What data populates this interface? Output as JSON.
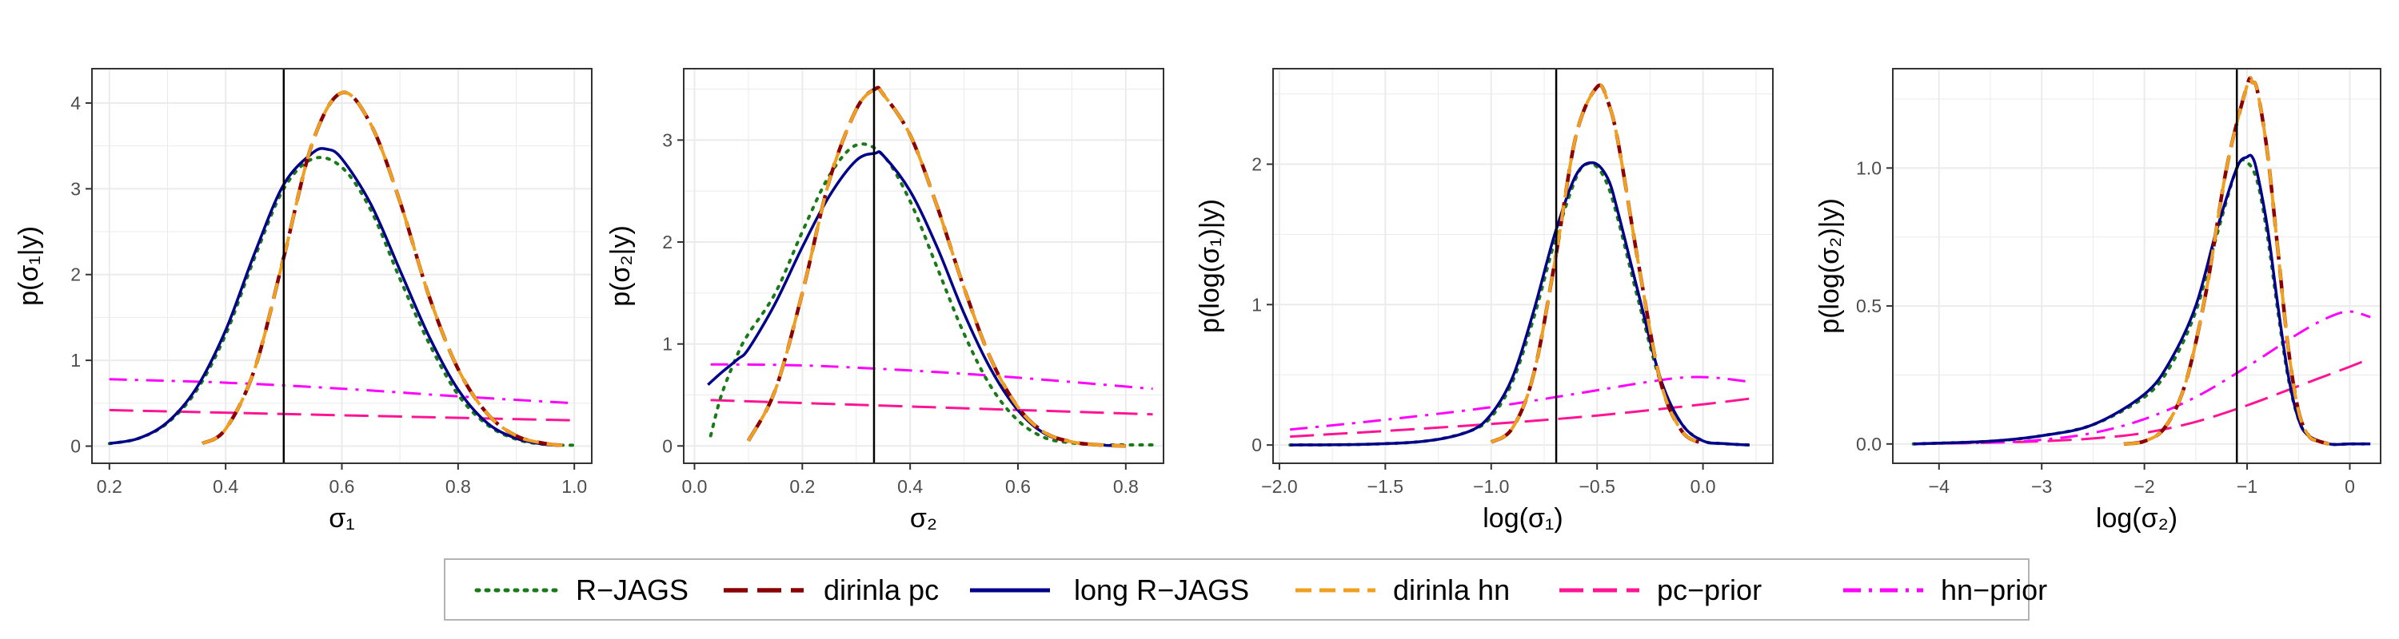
{
  "colors": {
    "R-JAGS": "#1a7a1a",
    "dirinla pc": "#8b0000",
    "long R-JAGS": "#00008b",
    "dirinla hn": "#f0a020",
    "pc-prior": "#ff1493",
    "hn-prior": "#ff00ff",
    "vline": "#000000",
    "grid": "#ebebeb",
    "panel_border": "#333333"
  },
  "legend": {
    "entries": [
      {
        "label": "R−JAGS",
        "series": "R-JAGS"
      },
      {
        "label": "dirinla pc",
        "series": "dirinla pc"
      },
      {
        "label": "long R−JAGS",
        "series": "long R-JAGS"
      },
      {
        "label": "dirinla hn",
        "series": "dirinla hn"
      },
      {
        "label": "pc−prior",
        "series": "pc-prior"
      },
      {
        "label": "hn−prior",
        "series": "hn-prior"
      }
    ],
    "placement": "bottom"
  },
  "chart_data": [
    {
      "type": "line",
      "xlabel": "σ₁",
      "ylabel": "p(σ₁|y)",
      "xlim": [
        0.17,
        1.03
      ],
      "ylim": [
        -0.2,
        4.4
      ],
      "xticks": [
        0.2,
        0.4,
        0.6,
        0.8,
        1.0
      ],
      "xtick_labels": [
        "0.2",
        "0.4",
        "0.6",
        "0.8",
        "1.0"
      ],
      "yticks": [
        0,
        1,
        2,
        3,
        4
      ],
      "ytick_labels": [
        "0",
        "1",
        "2",
        "3",
        "4"
      ],
      "vline": 0.5,
      "grid": true,
      "series": [
        {
          "name": "R-JAGS",
          "dash": "dot",
          "x": [
            0.2,
            0.25,
            0.3,
            0.35,
            0.4,
            0.45,
            0.5,
            0.55,
            0.6,
            0.65,
            0.7,
            0.75,
            0.8,
            0.85,
            0.9,
            0.95,
            1.0
          ],
          "y": [
            0.03,
            0.09,
            0.27,
            0.65,
            1.3,
            2.2,
            3.0,
            3.35,
            3.25,
            2.75,
            1.95,
            1.2,
            0.6,
            0.25,
            0.08,
            0.02,
            0.01
          ]
        },
        {
          "name": "dirinla pc",
          "dash": "longdash",
          "x": [
            0.36,
            0.4,
            0.45,
            0.5,
            0.55,
            0.6,
            0.65,
            0.7,
            0.75,
            0.8,
            0.85,
            0.9,
            0.95,
            0.98
          ],
          "y": [
            0.03,
            0.2,
            0.9,
            2.2,
            3.55,
            4.12,
            3.75,
            2.85,
            1.75,
            0.9,
            0.38,
            0.12,
            0.03,
            0.01
          ]
        },
        {
          "name": "long R-JAGS",
          "dash": "solid",
          "x": [
            0.2,
            0.25,
            0.3,
            0.35,
            0.4,
            0.45,
            0.5,
            0.55,
            0.575,
            0.6,
            0.65,
            0.7,
            0.75,
            0.8,
            0.85,
            0.9,
            0.95,
            0.98
          ],
          "y": [
            0.03,
            0.09,
            0.28,
            0.68,
            1.35,
            2.25,
            3.05,
            3.42,
            3.46,
            3.35,
            2.82,
            2.05,
            1.28,
            0.66,
            0.27,
            0.09,
            0.02,
            0.01
          ]
        },
        {
          "name": "dirinla hn",
          "dash": "dash",
          "x": [
            0.36,
            0.4,
            0.45,
            0.5,
            0.55,
            0.6,
            0.65,
            0.7,
            0.75,
            0.8,
            0.85,
            0.9,
            0.95,
            0.98
          ],
          "y": [
            0.03,
            0.2,
            0.9,
            2.2,
            3.55,
            4.12,
            3.75,
            2.85,
            1.75,
            0.9,
            0.38,
            0.12,
            0.03,
            0.01
          ]
        },
        {
          "name": "pc-prior",
          "dash": "longdash",
          "x": [
            0.2,
            1.0
          ],
          "y": [
            0.42,
            0.3
          ]
        },
        {
          "name": "hn-prior",
          "dash": "dashdot",
          "x": [
            0.2,
            0.4,
            0.6,
            0.8,
            1.0
          ],
          "y": [
            0.78,
            0.74,
            0.67,
            0.58,
            0.5
          ]
        }
      ]
    },
    {
      "type": "line",
      "xlabel": "σ₂",
      "ylabel": "p(σ₂|y)",
      "xlim": [
        -0.02,
        0.87
      ],
      "ylim": [
        -0.17,
        3.7
      ],
      "xticks": [
        0.0,
        0.2,
        0.4,
        0.6,
        0.8
      ],
      "xtick_labels": [
        "0.0",
        "0.2",
        "0.4",
        "0.6",
        "0.8"
      ],
      "yticks": [
        0,
        1,
        2,
        3
      ],
      "ytick_labels": [
        "0",
        "1",
        "2",
        "3"
      ],
      "vline": 0.333,
      "grid": true,
      "series": [
        {
          "name": "R-JAGS",
          "dash": "dot",
          "x": [
            0.03,
            0.05,
            0.08,
            0.1,
            0.15,
            0.2,
            0.25,
            0.3,
            0.35,
            0.4,
            0.45,
            0.5,
            0.55,
            0.6,
            0.65,
            0.7,
            0.75,
            0.8,
            0.85
          ],
          "y": [
            0.1,
            0.5,
            0.9,
            1.1,
            1.5,
            2.1,
            2.65,
            2.95,
            2.85,
            2.4,
            1.75,
            1.1,
            0.58,
            0.25,
            0.08,
            0.03,
            0.01,
            0.01,
            0.01
          ]
        },
        {
          "name": "dirinla pc",
          "dash": "longdash",
          "x": [
            0.1,
            0.15,
            0.2,
            0.25,
            0.3,
            0.335,
            0.35,
            0.4,
            0.45,
            0.5,
            0.55,
            0.6,
            0.65,
            0.7,
            0.75,
            0.8
          ],
          "y": [
            0.05,
            0.55,
            1.5,
            2.6,
            3.3,
            3.5,
            3.45,
            3.05,
            2.35,
            1.55,
            0.85,
            0.38,
            0.13,
            0.04,
            0.01,
            0.0
          ]
        },
        {
          "name": "long R-JAGS",
          "dash": "solid",
          "x": [
            0.025,
            0.05,
            0.08,
            0.1,
            0.15,
            0.2,
            0.25,
            0.3,
            0.335,
            0.35,
            0.4,
            0.45,
            0.5,
            0.55,
            0.6,
            0.65,
            0.7,
            0.75,
            0.8
          ],
          "y": [
            0.6,
            0.72,
            0.85,
            0.95,
            1.4,
            1.95,
            2.45,
            2.8,
            2.87,
            2.85,
            2.5,
            1.95,
            1.3,
            0.75,
            0.35,
            0.12,
            0.04,
            0.01,
            0.0
          ]
        },
        {
          "name": "dirinla hn",
          "dash": "dash",
          "x": [
            0.1,
            0.15,
            0.2,
            0.25,
            0.3,
            0.335,
            0.35,
            0.4,
            0.45,
            0.5,
            0.55,
            0.6,
            0.65,
            0.7,
            0.75,
            0.8
          ],
          "y": [
            0.05,
            0.55,
            1.5,
            2.6,
            3.3,
            3.5,
            3.45,
            3.05,
            2.35,
            1.55,
            0.85,
            0.38,
            0.13,
            0.04,
            0.01,
            0.0
          ]
        },
        {
          "name": "pc-prior",
          "dash": "longdash",
          "x": [
            0.03,
            0.85
          ],
          "y": [
            0.45,
            0.31
          ]
        },
        {
          "name": "hn-prior",
          "dash": "dashdot",
          "x": [
            0.03,
            0.2,
            0.4,
            0.6,
            0.85
          ],
          "y": [
            0.8,
            0.79,
            0.74,
            0.67,
            0.56
          ]
        }
      ]
    },
    {
      "type": "line",
      "xlabel": "log(σ₁)",
      "ylabel": "p(log(σ₁)|y)",
      "xlim": [
        -2.03,
        0.33
      ],
      "ylim": [
        -0.13,
        2.68
      ],
      "xticks": [
        -2.0,
        -1.5,
        -1.0,
        -0.5,
        0.0
      ],
      "xtick_labels": [
        "−2.0",
        "−1.5",
        "−1.0",
        "−0.5",
        "0.0"
      ],
      "yticks": [
        0,
        1,
        2
      ],
      "ytick_labels": [
        "0",
        "1",
        "2"
      ],
      "vline": -0.693,
      "grid": true,
      "series": [
        {
          "name": "R-JAGS",
          "dash": "dot",
          "x": [
            -1.95,
            -1.6,
            -1.3,
            -1.1,
            -1.0,
            -0.9,
            -0.8,
            -0.7,
            -0.6,
            -0.55,
            -0.5,
            -0.45,
            -0.4,
            -0.3,
            -0.2,
            -0.1,
            0.0,
            0.1,
            0.22
          ],
          "y": [
            0.0,
            0.005,
            0.03,
            0.1,
            0.2,
            0.45,
            0.9,
            1.45,
            1.9,
            2.0,
            1.98,
            1.85,
            1.6,
            1.0,
            0.45,
            0.15,
            0.03,
            0.01,
            0.0
          ]
        },
        {
          "name": "dirinla pc",
          "dash": "longdash",
          "x": [
            -1.0,
            -0.9,
            -0.8,
            -0.7,
            -0.6,
            -0.5,
            -0.45,
            -0.4,
            -0.3,
            -0.2,
            -0.1,
            0.0
          ],
          "y": [
            0.02,
            0.12,
            0.5,
            1.3,
            2.2,
            2.55,
            2.45,
            2.15,
            1.25,
            0.45,
            0.1,
            0.01
          ]
        },
        {
          "name": "long R-JAGS",
          "dash": "solid",
          "x": [
            -1.95,
            -1.6,
            -1.3,
            -1.1,
            -1.0,
            -0.9,
            -0.8,
            -0.7,
            -0.6,
            -0.52,
            -0.45,
            -0.4,
            -0.3,
            -0.2,
            -0.1,
            0.0,
            0.1,
            0.22
          ],
          "y": [
            0.0,
            0.005,
            0.03,
            0.1,
            0.22,
            0.48,
            0.95,
            1.5,
            1.92,
            2.01,
            1.9,
            1.65,
            1.05,
            0.47,
            0.15,
            0.03,
            0.01,
            0.0
          ]
        },
        {
          "name": "dirinla hn",
          "dash": "dash",
          "x": [
            -1.0,
            -0.9,
            -0.8,
            -0.7,
            -0.6,
            -0.5,
            -0.45,
            -0.4,
            -0.3,
            -0.2,
            -0.1,
            0.0
          ],
          "y": [
            0.02,
            0.12,
            0.5,
            1.3,
            2.2,
            2.55,
            2.45,
            2.15,
            1.25,
            0.45,
            0.1,
            0.01
          ]
        },
        {
          "name": "pc-prior",
          "dash": "longdash",
          "x": [
            -1.95,
            -1.5,
            -1.0,
            -0.5,
            0.0,
            0.22
          ],
          "y": [
            0.06,
            0.1,
            0.15,
            0.21,
            0.29,
            0.33
          ]
        },
        {
          "name": "hn-prior",
          "dash": "dashdot",
          "x": [
            -1.95,
            -1.5,
            -1.0,
            -0.5,
            -0.3,
            -0.1,
            0.05,
            0.22
          ],
          "y": [
            0.11,
            0.18,
            0.27,
            0.39,
            0.44,
            0.48,
            0.48,
            0.45
          ]
        }
      ]
    },
    {
      "type": "line",
      "xlabel": "log(σ₂)",
      "ylabel": "p(log(σ₂)|y)",
      "xlim": [
        -4.45,
        0.3
      ],
      "ylim": [
        -0.07,
        1.36
      ],
      "xticks": [
        -4,
        -3,
        -2,
        -1,
        0
      ],
      "xtick_labels": [
        "−4",
        "−3",
        "−2",
        "−1",
        "0"
      ],
      "yticks": [
        0.0,
        0.5,
        1.0
      ],
      "ytick_labels": [
        "0.0",
        "0.5",
        "1.0"
      ],
      "vline": -1.1,
      "grid": true,
      "series": [
        {
          "name": "R-JAGS",
          "dash": "dot",
          "x": [
            -4.25,
            -3.5,
            -3.0,
            -2.5,
            -2.0,
            -1.75,
            -1.5,
            -1.3,
            -1.1,
            -1.0,
            -0.9,
            -0.8,
            -0.7,
            -0.6,
            -0.5,
            -0.4,
            -0.2,
            0.0,
            0.2
          ],
          "y": [
            0.0,
            0.01,
            0.03,
            0.07,
            0.17,
            0.28,
            0.48,
            0.75,
            1.0,
            1.02,
            0.95,
            0.75,
            0.48,
            0.24,
            0.09,
            0.03,
            0.0,
            0.0,
            0.0
          ]
        },
        {
          "name": "dirinla pc",
          "dash": "longdash",
          "x": [
            -2.2,
            -2.0,
            -1.8,
            -1.6,
            -1.4,
            -1.2,
            -1.0,
            -0.95,
            -0.9,
            -0.8,
            -0.7,
            -0.6,
            -0.5,
            -0.4,
            -0.3,
            -0.2
          ],
          "y": [
            0.0,
            0.01,
            0.06,
            0.22,
            0.55,
            1.0,
            1.3,
            1.31,
            1.28,
            1.05,
            0.7,
            0.35,
            0.12,
            0.03,
            0.01,
            0.0
          ]
        },
        {
          "name": "long R-JAGS",
          "dash": "solid",
          "x": [
            -4.25,
            -3.5,
            -3.0,
            -2.5,
            -2.0,
            -1.75,
            -1.5,
            -1.3,
            -1.1,
            -1.0,
            -0.95,
            -0.9,
            -0.8,
            -0.7,
            -0.6,
            -0.5,
            -0.4,
            -0.2,
            0.0,
            0.2
          ],
          "y": [
            0.0,
            0.01,
            0.03,
            0.07,
            0.18,
            0.3,
            0.5,
            0.77,
            1.0,
            1.04,
            1.04,
            0.98,
            0.78,
            0.5,
            0.25,
            0.09,
            0.03,
            0.0,
            0.0,
            0.0
          ]
        },
        {
          "name": "dirinla hn",
          "dash": "dash",
          "x": [
            -2.2,
            -2.0,
            -1.8,
            -1.6,
            -1.4,
            -1.2,
            -1.0,
            -0.95,
            -0.9,
            -0.8,
            -0.7,
            -0.6,
            -0.5,
            -0.4,
            -0.3,
            -0.2
          ],
          "y": [
            0.0,
            0.01,
            0.06,
            0.22,
            0.55,
            1.0,
            1.3,
            1.31,
            1.28,
            1.05,
            0.7,
            0.35,
            0.12,
            0.03,
            0.01,
            0.0
          ]
        },
        {
          "name": "pc-prior",
          "dash": "longdash",
          "x": [
            -4.25,
            -3.5,
            -3.0,
            -2.5,
            -2.0,
            -1.5,
            -1.0,
            -0.5,
            0.0,
            0.2
          ],
          "y": [
            0.0,
            0.005,
            0.01,
            0.02,
            0.04,
            0.08,
            0.14,
            0.21,
            0.28,
            0.31
          ]
        },
        {
          "name": "hn-prior",
          "dash": "dashdot",
          "x": [
            -4.25,
            -3.5,
            -3.0,
            -2.5,
            -2.0,
            -1.5,
            -1.0,
            -0.5,
            -0.2,
            0.0,
            0.2
          ],
          "y": [
            0.0,
            0.005,
            0.015,
            0.04,
            0.09,
            0.17,
            0.28,
            0.4,
            0.46,
            0.48,
            0.46
          ]
        }
      ]
    }
  ]
}
